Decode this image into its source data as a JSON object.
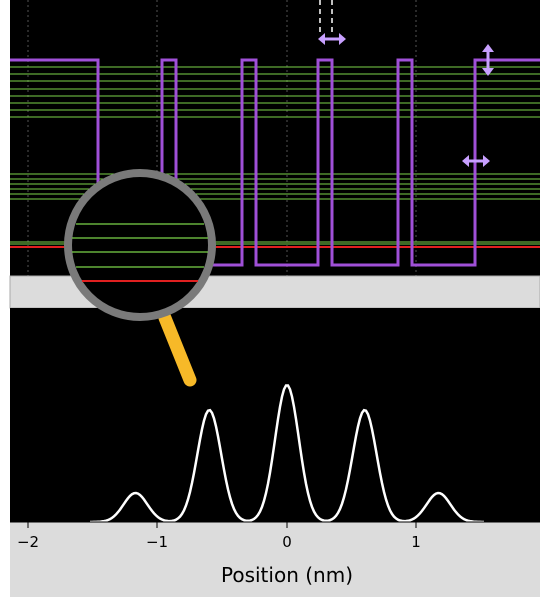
{
  "x_axis": {
    "label": "Position (nm)",
    "ticks": [
      "−2",
      "−1",
      "0",
      "1"
    ]
  }
}
